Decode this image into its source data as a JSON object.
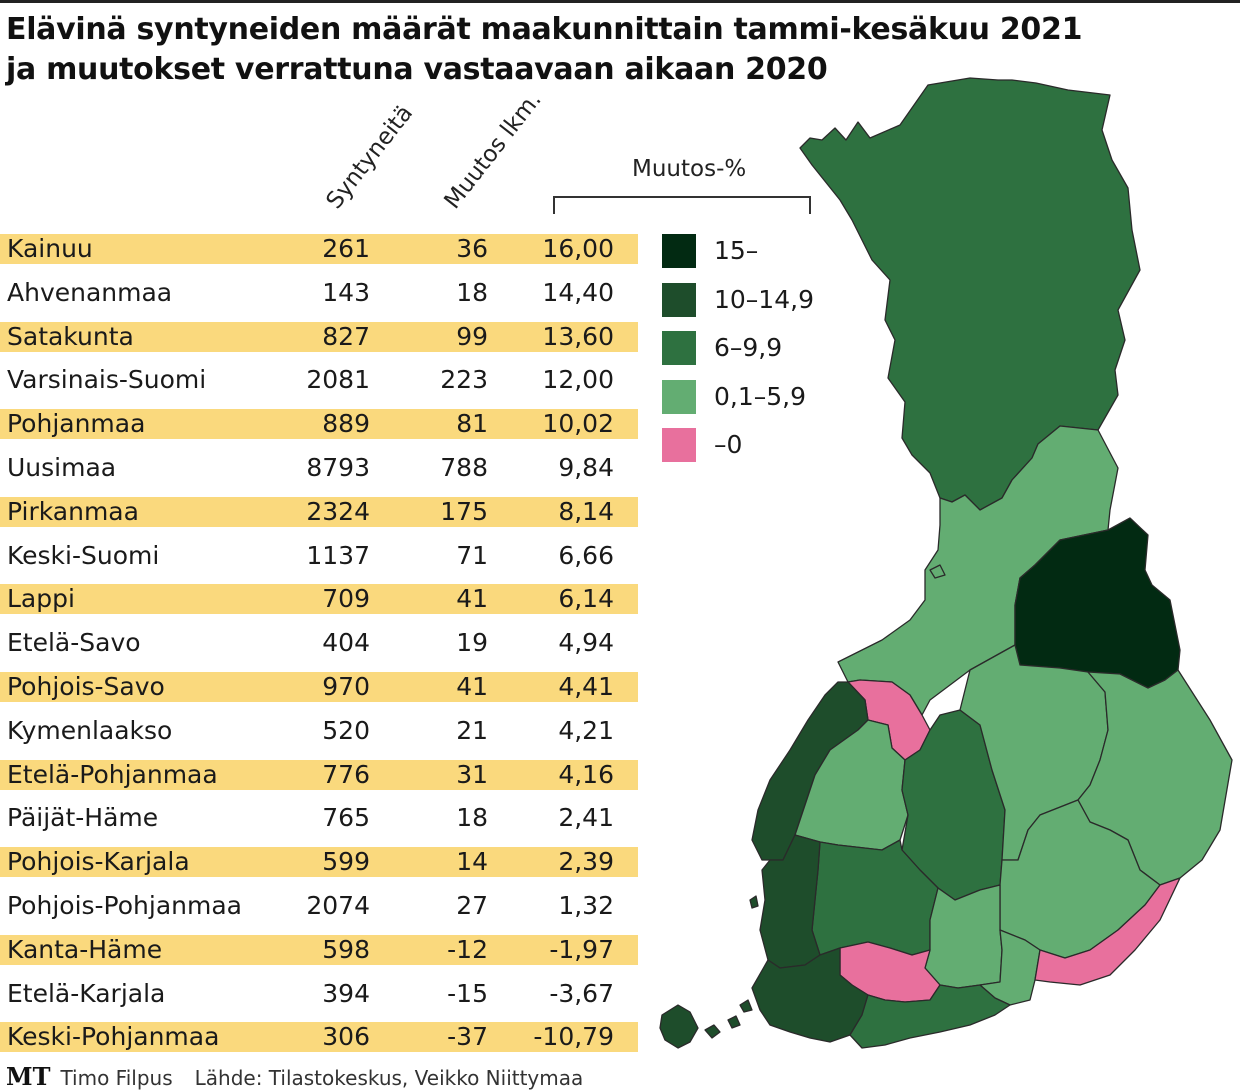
{
  "title": {
    "line1": "Elävinä syntyneiden määrät maakunnittain tammi-kesäkuu 2021",
    "line2": "ja muutokset verrattuna vastaavaan aikaan 2020"
  },
  "chart_data": {
    "type": "table",
    "columns": [
      "Syntyneitä",
      "Muutos lkm.",
      "Muutos-%"
    ],
    "rows": [
      {
        "name": "Kainuu",
        "births": "261",
        "change": "36",
        "pct": "16,00"
      },
      {
        "name": "Ahvenanmaa",
        "births": "143",
        "change": "18",
        "pct": "14,40"
      },
      {
        "name": "Satakunta",
        "births": "827",
        "change": "99",
        "pct": "13,60"
      },
      {
        "name": "Varsinais-Suomi",
        "births": "2081",
        "change": "223",
        "pct": "12,00"
      },
      {
        "name": "Pohjanmaa",
        "births": "889",
        "change": "81",
        "pct": "10,02"
      },
      {
        "name": "Uusimaa",
        "births": "8793",
        "change": "788",
        "pct": "9,84"
      },
      {
        "name": "Pirkanmaa",
        "births": "2324",
        "change": "175",
        "pct": "8,14"
      },
      {
        "name": "Keski-Suomi",
        "births": "1137",
        "change": "71",
        "pct": "6,66"
      },
      {
        "name": "Lappi",
        "births": "709",
        "change": "41",
        "pct": "6,14"
      },
      {
        "name": "Etelä-Savo",
        "births": "404",
        "change": "19",
        "pct": "4,94"
      },
      {
        "name": "Pohjois-Savo",
        "births": "970",
        "change": "41",
        "pct": "4,41"
      },
      {
        "name": "Kymenlaakso",
        "births": "520",
        "change": "21",
        "pct": "4,21"
      },
      {
        "name": "Etelä-Pohjanmaa",
        "births": "776",
        "change": "31",
        "pct": "4,16"
      },
      {
        "name": "Päijät-Häme",
        "births": "765",
        "change": "18",
        "pct": "2,41"
      },
      {
        "name": "Pohjois-Karjala",
        "births": "599",
        "change": "14",
        "pct": "2,39"
      },
      {
        "name": "Pohjois-Pohjanmaa",
        "births": "2074",
        "change": "27",
        "pct": "1,32"
      },
      {
        "name": "Kanta-Häme",
        "births": "598",
        "change": "-12",
        "pct": "-1,97"
      },
      {
        "name": "Etelä-Karjala",
        "births": "394",
        "change": "-15",
        "pct": "-3,67"
      },
      {
        "name": "Keski-Pohjanmaa",
        "births": "306",
        "change": "-37",
        "pct": "-10,79"
      }
    ],
    "legend": [
      {
        "label": "15–",
        "color": "#022a12"
      },
      {
        "label": "10–14,9",
        "color": "#1e4d2b"
      },
      {
        "label": "6–9,9",
        "color": "#2e7140"
      },
      {
        "label": "0,1–5,9",
        "color": "#63ad72"
      },
      {
        "label": "–0",
        "color": "#e8709d"
      }
    ]
  },
  "footer": {
    "logo": "MT",
    "author": "Timo Filpus",
    "source": "Lähde: Tilastokeskus, Veikko Niittymaa"
  },
  "colors": {
    "row_highlight": "#fad97d",
    "border": "#2a2a2a"
  }
}
